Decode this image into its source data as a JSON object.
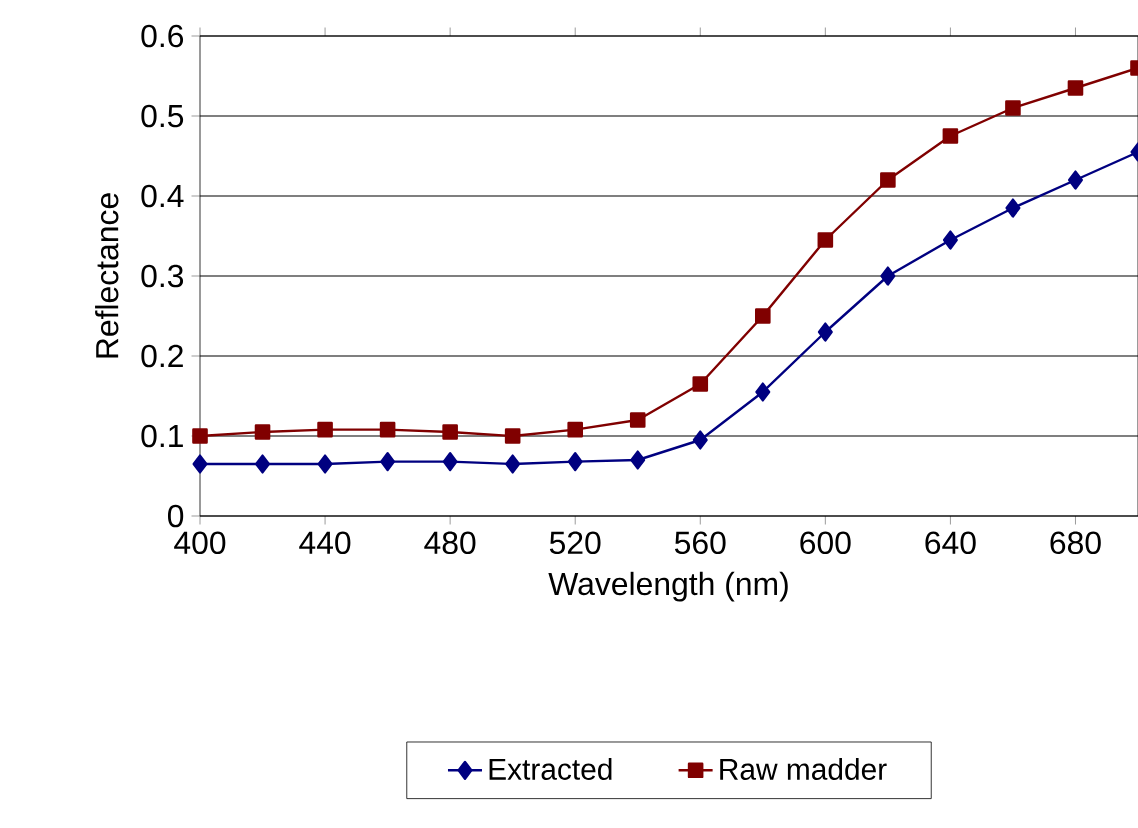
{
  "chart_data": {
    "type": "line",
    "xlabel": "Wavelength (nm)",
    "ylabel": "Reflectance",
    "x": [
      400,
      420,
      440,
      460,
      480,
      500,
      520,
      540,
      560,
      580,
      600,
      620,
      640,
      660,
      680,
      700
    ],
    "series": [
      {
        "name": "Extracted",
        "color": "#000080",
        "marker": "diamond",
        "values": [
          0.065,
          0.065,
          0.065,
          0.068,
          0.068,
          0.065,
          0.068,
          0.07,
          0.095,
          0.155,
          0.23,
          0.3,
          0.345,
          0.385,
          0.42,
          0.455
        ]
      },
      {
        "name": "Raw madder",
        "color": "#800000",
        "marker": "square",
        "values": [
          0.1,
          0.105,
          0.108,
          0.108,
          0.105,
          0.1,
          0.108,
          0.12,
          0.165,
          0.25,
          0.345,
          0.42,
          0.475,
          0.51,
          0.535,
          0.56
        ]
      }
    ],
    "xlim": [
      400,
      700
    ],
    "xticks": [
      400,
      440,
      480,
      520,
      560,
      600,
      640,
      680
    ],
    "ylim": [
      0,
      0.6
    ],
    "yticks": [
      0,
      0.1,
      0.2,
      0.3,
      0.4,
      0.5,
      0.6
    ],
    "grid": "y",
    "legend": "bottom"
  }
}
